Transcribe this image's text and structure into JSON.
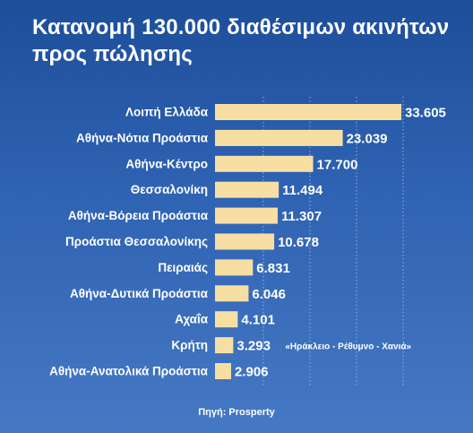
{
  "title": "Κατανομή 130.000 διαθέσιμων ακινήτων προς πώλησης",
  "source": "Πηγή: Prosperty",
  "colors": {
    "bar": "#f7dfa4",
    "grid": "#8fb0de"
  },
  "chart_data": {
    "type": "bar",
    "orientation": "horizontal",
    "categories": [
      "Λοιπή Ελλάδα",
      "Αθήνα-Νότια Προάστια",
      "Αθήνα-Κέντρο",
      "Θεσσαλονίκη",
      "Αθήνα-Βόρεια Προάστια",
      "Προάστια Θεσσαλονίκης",
      "Πειραιάς",
      "Αθήνα-Δυτικά Προάστια",
      "Αχαΐα",
      "Κρήτη",
      "Αθήνα-Ανατολικά Προάστια"
    ],
    "values": [
      33605,
      23039,
      17700,
      11494,
      11307,
      10678,
      6831,
      6046,
      4101,
      3293,
      2906
    ],
    "value_labels": [
      "33.605",
      "23.039",
      "17.700",
      "11.494",
      "11.307",
      "10.678",
      "6.831",
      "6.046",
      "4.101",
      "3.293",
      "2.906"
    ],
    "annotations": [
      {
        "category": "Κρήτη",
        "text": "«Ηράκλειο - Ρέθυμνο - Χανιά»"
      }
    ],
    "xlim": [
      0,
      33605
    ],
    "grid": true
  }
}
